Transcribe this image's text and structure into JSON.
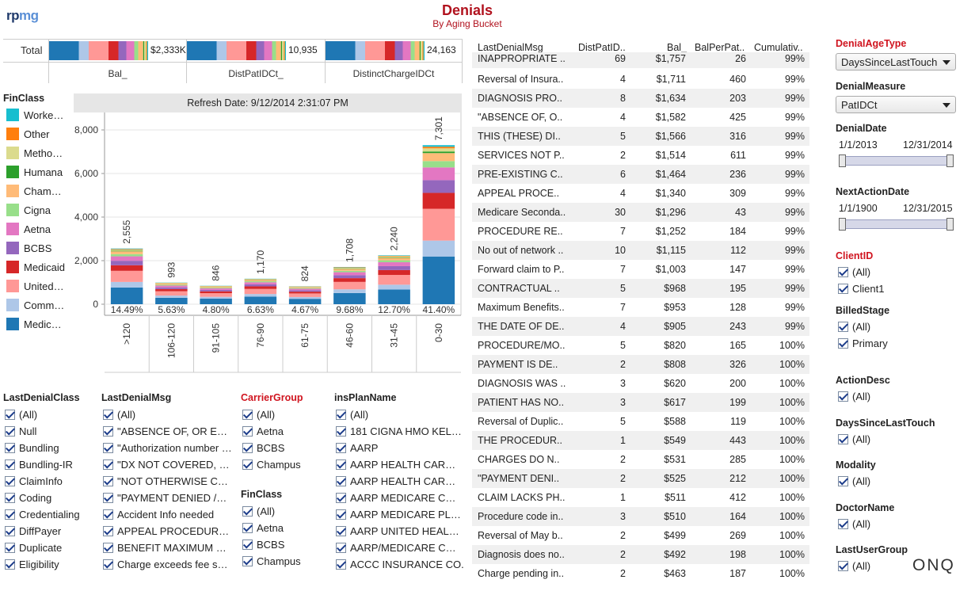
{
  "header": {
    "logo_a": "rp",
    "logo_b": "mg",
    "title": "Denials",
    "subtitle": "By Aging Bucket"
  },
  "totals": {
    "row_label": "Total",
    "cols": [
      {
        "label": "Bal_",
        "value": "$2,333K"
      },
      {
        "label": "DistPatIDCt_",
        "value": "10,935"
      },
      {
        "label": "DistinctChargeIDCt",
        "value": "24,163"
      }
    ]
  },
  "legend": {
    "title": "FinClass",
    "items": [
      {
        "label": "Worke…",
        "color": "#17becf"
      },
      {
        "label": "Other",
        "color": "#ff7f0e"
      },
      {
        "label": "Metho…",
        "color": "#dbdb8d"
      },
      {
        "label": "Humana",
        "color": "#2ca02c"
      },
      {
        "label": "Cham…",
        "color": "#ffbb78"
      },
      {
        "label": "Cigna",
        "color": "#98df8a"
      },
      {
        "label": "Aetna",
        "color": "#e377c2"
      },
      {
        "label": "BCBS",
        "color": "#9467bd"
      },
      {
        "label": "Medicaid",
        "color": "#d62728"
      },
      {
        "label": "United…",
        "color": "#ff9896"
      },
      {
        "label": "Comm…",
        "color": "#aec7e8"
      },
      {
        "label": "Medic…",
        "color": "#1f77b4"
      }
    ]
  },
  "chart_data": {
    "type": "bar",
    "title": "Refresh Date: 9/12/2014 2:31:07 PM",
    "categories": [
      ">120",
      "106-120",
      "91-105",
      "76-90",
      "61-75",
      "46-60",
      "31-45",
      "0-30"
    ],
    "values": [
      2555,
      993,
      846,
      1170,
      824,
      1708,
      2240,
      7301
    ],
    "value_labels": [
      "2,555",
      "993",
      "846",
      "1,170",
      "824",
      "1,708",
      "2,240",
      "7,301"
    ],
    "percent_labels": [
      "14.49%",
      "5.63%",
      "4.80%",
      "6.63%",
      "4.67%",
      "9.68%",
      "12.70%",
      "41.40%"
    ],
    "ylim": [
      0,
      8800
    ],
    "yticks": [
      0,
      2000,
      4000,
      6000,
      8000
    ],
    "ytick_labels": [
      "0",
      "2,000",
      "4,000",
      "6,000",
      "8,000"
    ],
    "stack_shares": [
      0.3,
      0.1,
      0.2,
      0.1,
      0.08,
      0.08,
      0.04,
      0.05,
      0.01,
      0.02,
      0.01,
      0.01
    ],
    "grid": true
  },
  "table": {
    "headers": [
      "LastDenialMsg",
      "DistPatID..",
      "Bal_",
      "BalPerPat..",
      "Cumulativ.."
    ],
    "rows": [
      [
        "INAPPROPRIATE ..",
        "69",
        "$1,757",
        "26",
        "99%"
      ],
      [
        "Reversal of Insura..",
        "4",
        "$1,711",
        "460",
        "99%"
      ],
      [
        "DIAGNOSIS PRO..",
        "8",
        "$1,634",
        "203",
        "99%"
      ],
      [
        "\"ABSENCE OF, O..",
        "4",
        "$1,582",
        "425",
        "99%"
      ],
      [
        "THIS (THESE) DI..",
        "5",
        "$1,566",
        "316",
        "99%"
      ],
      [
        "SERVICES NOT P..",
        "2",
        "$1,514",
        "611",
        "99%"
      ],
      [
        "PRE-EXISTING C..",
        "6",
        "$1,464",
        "236",
        "99%"
      ],
      [
        "APPEAL PROCE..",
        "4",
        "$1,340",
        "309",
        "99%"
      ],
      [
        "Medicare Seconda..",
        "30",
        "$1,296",
        "43",
        "99%"
      ],
      [
        "PROCEDURE RE..",
        "7",
        "$1,252",
        "184",
        "99%"
      ],
      [
        "No out of network ..",
        "10",
        "$1,115",
        "112",
        "99%"
      ],
      [
        "Forward claim to P..",
        "7",
        "$1,003",
        "147",
        "99%"
      ],
      [
        "CONTRACTUAL ..",
        "5",
        "$968",
        "195",
        "99%"
      ],
      [
        "Maximum Benefits..",
        "7",
        "$953",
        "128",
        "99%"
      ],
      [
        "THE DATE OF DE..",
        "4",
        "$905",
        "243",
        "99%"
      ],
      [
        "PROCEDURE/MO..",
        "5",
        "$820",
        "165",
        "100%"
      ],
      [
        "PAYMENT IS DE..",
        "2",
        "$808",
        "326",
        "100%"
      ],
      [
        "DIAGNOSIS WAS ..",
        "3",
        "$620",
        "200",
        "100%"
      ],
      [
        "PATIENT HAS NO..",
        "3",
        "$617",
        "199",
        "100%"
      ],
      [
        "Reversal of Duplic..",
        "5",
        "$588",
        "119",
        "100%"
      ],
      [
        "THE PROCEDUR..",
        "1",
        "$549",
        "443",
        "100%"
      ],
      [
        "CHARGES DO N..",
        "2",
        "$531",
        "285",
        "100%"
      ],
      [
        "\"PAYMENT DENI..",
        "2",
        "$525",
        "212",
        "100%"
      ],
      [
        "CLAIM LACKS PH..",
        "1",
        "$511",
        "412",
        "100%"
      ],
      [
        "Procedure code in..",
        "3",
        "$510",
        "164",
        "100%"
      ],
      [
        "Reversal of May b..",
        "2",
        "$499",
        "269",
        "100%"
      ],
      [
        "Diagnosis does no..",
        "2",
        "$492",
        "198",
        "100%"
      ],
      [
        "Charge pending in..",
        "2",
        "$463",
        "187",
        "100%"
      ]
    ]
  },
  "filters": {
    "last_denial_class": {
      "title": "LastDenialClass",
      "items": [
        "(All)",
        "Null",
        "Bundling",
        "Bundling-IR",
        "ClaimInfo",
        "Coding",
        "Credentialing",
        "DiffPayer",
        "Duplicate",
        "Eligibility"
      ]
    },
    "last_denial_msg": {
      "title": "LastDenialMsg",
      "items": [
        "(All)",
        "\"ABSENCE OF, OR E…",
        "\"Authorization number …",
        "\"DX NOT COVERED, …",
        "\"NOT OTHERWISE C…",
        "\"PAYMENT DENIED /…",
        "Accident Info needed",
        "APPEAL PROCEDUR…",
        "BENEFIT MAXIMUM …",
        "Charge exceeds fee s…"
      ]
    },
    "carrier_group": {
      "title": "CarrierGroup",
      "items": [
        "(All)",
        "Aetna",
        "BCBS",
        "Champus"
      ]
    },
    "finclass": {
      "title": "FinClass",
      "items": [
        "(All)",
        "Aetna",
        "BCBS",
        "Champus"
      ]
    },
    "ins_plan_name": {
      "title": "insPlanName",
      "items": [
        "(All)",
        "181 CIGNA HMO KEL…",
        "AARP",
        "AARP HEALTH CAR…",
        "AARP HEALTH CAR…",
        "AARP MEDICARE C…",
        "AARP MEDICARE PL…",
        "AARP UNITED HEAL…",
        "AARP/MEDICARE C…",
        "ACCC INSURANCE CO."
      ]
    }
  },
  "right_panel": {
    "denial_age_type": {
      "title": "DenialAgeType",
      "value": "DaysSinceLastTouch"
    },
    "denial_measure": {
      "title": "DenialMeasure",
      "value": "PatIDCt"
    },
    "denial_date": {
      "title": "DenialDate",
      "start": "1/1/2013",
      "end": "12/31/2014"
    },
    "next_action_date": {
      "title": "NextActionDate",
      "start": "1/1/1900",
      "end": "12/31/2015"
    },
    "client_id": {
      "title": "ClientID",
      "items": [
        "(All)",
        "Client1"
      ]
    },
    "billed_stage": {
      "title": "BilledStage",
      "items": [
        "(All)",
        "Primary"
      ]
    },
    "action_desc": {
      "title": "ActionDesc",
      "items": [
        "(All)"
      ]
    },
    "days_since_last_touch": {
      "title": "DaysSinceLastTouch",
      "items": [
        "(All)"
      ]
    },
    "modality": {
      "title": "Modality",
      "items": [
        "(All)"
      ]
    },
    "doctor_name": {
      "title": "DoctorName",
      "items": [
        "(All)"
      ]
    },
    "last_user_group": {
      "title": "LastUserGroup",
      "items": [
        "(All)"
      ]
    }
  },
  "brand": {
    "mark": "ONQ"
  }
}
